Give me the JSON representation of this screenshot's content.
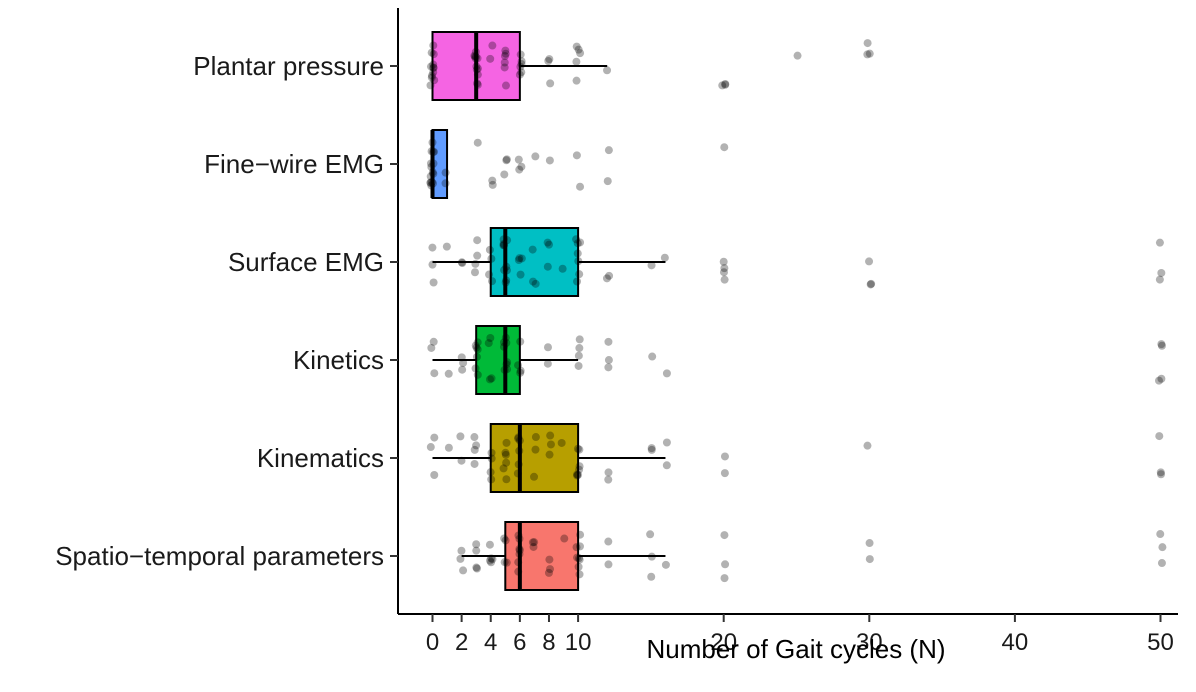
{
  "chart_data": {
    "type": "boxplot",
    "title": "",
    "xlabel": "Number of Gait cycles (N)",
    "ylabel": "",
    "xlim": [
      -2.5,
      52.5
    ],
    "xticks": [
      0,
      2,
      4,
      6,
      8,
      10,
      20,
      30,
      40,
      50
    ],
    "grid": false,
    "legend": "none",
    "categories": [
      "Plantar pressure",
      "Fine−wire EMG",
      "Surface EMG",
      "Kinetics",
      "Kinematics",
      "Spatio−temporal parameters"
    ],
    "boxes": [
      {
        "name": "Plantar pressure",
        "color": "#F564E3",
        "whisker_low": 0,
        "q1": 0,
        "median": 3,
        "q3": 6,
        "whisker_high": 12,
        "points": [
          0,
          0,
          0,
          0,
          0,
          0,
          0,
          0,
          0,
          0,
          0,
          0,
          3,
          3,
          3,
          3,
          3,
          3,
          3,
          3,
          3,
          3,
          3,
          3,
          4,
          4,
          5,
          5,
          5,
          5,
          5,
          5,
          6,
          6,
          6,
          6,
          6,
          6,
          8,
          8,
          8,
          10,
          10,
          10,
          10,
          10,
          12,
          20,
          20,
          20,
          25,
          30,
          30,
          30
        ]
      },
      {
        "name": "Fine−wire EMG",
        "color": "#619CFF",
        "whisker_low": 0,
        "q1": 0,
        "median": 0,
        "q3": 1,
        "whisker_high": 1,
        "points": [
          0,
          0,
          0,
          0,
          0,
          0,
          0,
          0,
          0,
          0,
          0,
          0,
          0,
          0,
          0,
          1,
          1,
          3,
          4,
          4,
          5,
          5,
          5,
          6,
          6,
          6,
          7,
          8,
          10,
          10,
          12,
          12,
          20
        ]
      },
      {
        "name": "Surface EMG",
        "color": "#00BFC4",
        "whisker_low": 0,
        "q1": 4,
        "median": 5,
        "q3": 10,
        "whisker_high": 16,
        "points": [
          0,
          0,
          0,
          1,
          2,
          2,
          3,
          3,
          3,
          3,
          4,
          4,
          4,
          4,
          5,
          5,
          5,
          5,
          5,
          5,
          5,
          5,
          5,
          5,
          6,
          6,
          6,
          6,
          7,
          7,
          7,
          8,
          8,
          8,
          9,
          10,
          10,
          10,
          10,
          10,
          10,
          10,
          12,
          12,
          15,
          16,
          20,
          20,
          20,
          20,
          30,
          30,
          30,
          50,
          50,
          50
        ]
      },
      {
        "name": "Kinetics",
        "color": "#00BA38",
        "whisker_low": 0,
        "q1": 3,
        "median": 5,
        "q3": 6,
        "whisker_high": 10,
        "points": [
          0,
          0,
          0,
          1,
          2,
          2,
          2,
          3,
          3,
          3,
          3,
          3,
          3,
          3,
          4,
          4,
          4,
          4,
          5,
          5,
          5,
          5,
          5,
          5,
          5,
          5,
          6,
          6,
          6,
          6,
          8,
          8,
          10,
          10,
          10,
          10,
          12,
          12,
          12,
          15,
          16,
          50,
          50,
          50,
          50
        ]
      },
      {
        "name": "Kinematics",
        "color": "#B79F00",
        "whisker_low": 0,
        "q1": 4,
        "median": 6,
        "q3": 10,
        "whisker_high": 16,
        "points": [
          0,
          0,
          0,
          1,
          2,
          2,
          3,
          3,
          3,
          3,
          4,
          4,
          4,
          4,
          5,
          5,
          5,
          5,
          5,
          5,
          6,
          6,
          6,
          6,
          6,
          6,
          7,
          7,
          7,
          8,
          8,
          8,
          9,
          10,
          10,
          10,
          10,
          10,
          10,
          10,
          12,
          12,
          15,
          15,
          16,
          16,
          20,
          20,
          30,
          50,
          50,
          50
        ]
      },
      {
        "name": "Spatio−temporal parameters",
        "color": "#F8766D",
        "whisker_low": 2,
        "q1": 5,
        "median": 6,
        "q3": 10,
        "whisker_high": 16,
        "points": [
          2,
          2,
          2,
          3,
          3,
          3,
          3,
          4,
          4,
          4,
          4,
          4,
          5,
          5,
          5,
          5,
          6,
          6,
          6,
          6,
          6,
          6,
          6,
          7,
          7,
          7,
          8,
          8,
          8,
          9,
          10,
          10,
          10,
          10,
          10,
          10,
          10,
          10,
          12,
          12,
          15,
          15,
          15,
          16,
          20,
          20,
          20,
          30,
          30,
          50,
          50,
          50
        ]
      }
    ]
  }
}
